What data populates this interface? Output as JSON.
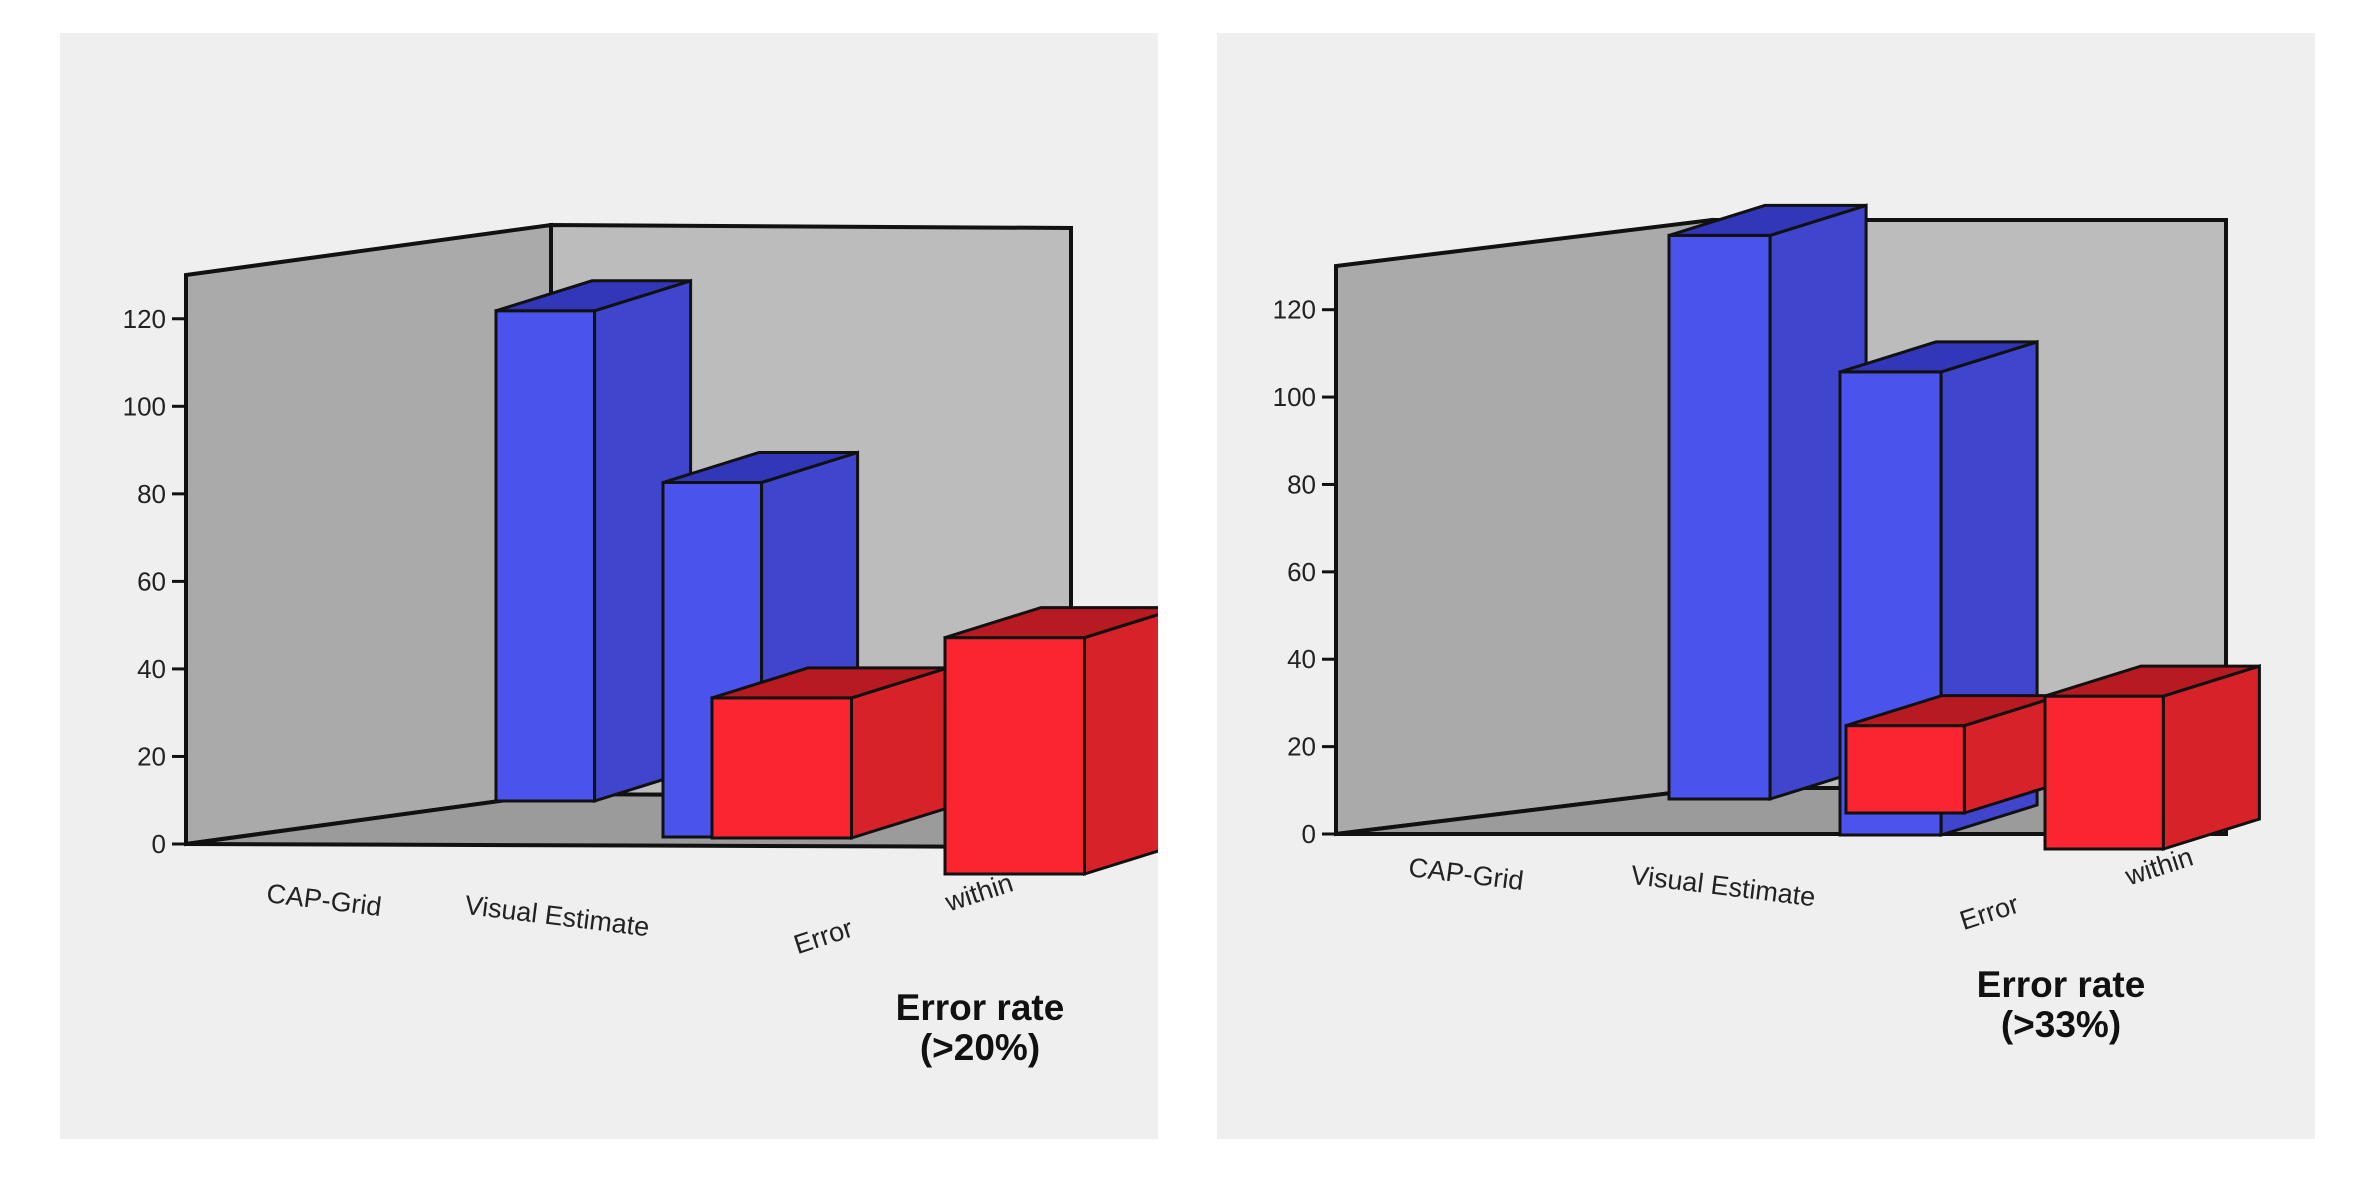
{
  "colors": {
    "wall_back": "#bcbcbc",
    "wall_side": "#aaaaaa",
    "floor": "#9b9b9b",
    "outline": "#111111",
    "series": [
      {
        "front": "#4a54ec",
        "side": "#3f45cc",
        "top": "#3236b8"
      },
      {
        "front": "#fb2531",
        "side": "#d8222a",
        "top": "#b81a22"
      }
    ]
  },
  "chart_data": [
    {
      "type": "bar",
      "variant": "3d-clustered",
      "title": "Error rate\n(>20%)",
      "categories": [
        "CAP-Grid",
        "Visual Estimate"
      ],
      "depth_labels": [
        "Error",
        "within"
      ],
      "yticks": [
        "0",
        "20",
        "40",
        "60",
        "80",
        "100",
        "120"
      ],
      "ylim": [
        0,
        130
      ],
      "series": [
        {
          "values": [
            112,
            81
          ]
        },
        {
          "values": [
            32,
            54
          ]
        }
      ]
    },
    {
      "type": "bar",
      "variant": "3d-clustered",
      "title": "Error rate\n(>33%)",
      "categories": [
        "CAP-Grid",
        "Visual Estimate"
      ],
      "depth_labels": [
        "Error",
        "within"
      ],
      "yticks": [
        "0",
        "20",
        "40",
        "60",
        "80",
        "100",
        "120"
      ],
      "ylim": [
        0,
        130
      ],
      "series": [
        {
          "values": [
            129,
            106
          ]
        },
        {
          "values": [
            20,
            35
          ]
        }
      ]
    }
  ]
}
